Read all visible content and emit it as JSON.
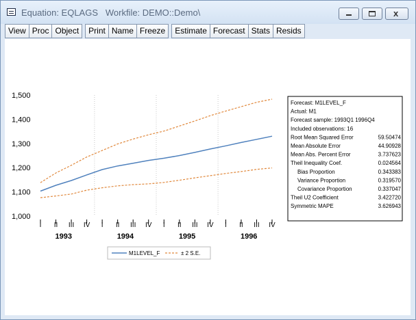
{
  "window": {
    "title": "Equation: EQLAGS   Workfile: DEMO::Demo\\",
    "minimize_glyph": "–",
    "close_glyph": "x"
  },
  "toolbar": {
    "groups": [
      [
        "View",
        "Proc",
        "Object"
      ],
      [
        "Print",
        "Name",
        "Freeze"
      ],
      [
        "Estimate",
        "Forecast",
        "Stats",
        "Resids"
      ]
    ]
  },
  "chart_data": {
    "type": "line",
    "ylim": [
      1000,
      1500
    ],
    "yticks": [
      1000,
      1100,
      1200,
      1300,
      1400,
      1500
    ],
    "ytick_labels": [
      "1,000",
      "1,100",
      "1,200",
      "1,300",
      "1,400",
      "1,500"
    ],
    "quarters": [
      "I",
      "II",
      "III",
      "IV",
      "I",
      "II",
      "III",
      "IV",
      "I",
      "II",
      "III",
      "IV",
      "I",
      "II",
      "III",
      "IV"
    ],
    "years": [
      "1993",
      "1994",
      "1995",
      "1996"
    ],
    "grid": "vertical dotted at year boundaries",
    "series": [
      {
        "name": "M1LEVEL_F",
        "color": "#4f81bd",
        "style": "solid",
        "values": [
          1103,
          1127,
          1147,
          1170,
          1192,
          1207,
          1218,
          1230,
          1239,
          1250,
          1263,
          1277,
          1290,
          1304,
          1317,
          1330
        ]
      },
      {
        "name": "± 2 S.E.",
        "color": "#e0873a",
        "style": "dashed",
        "upper": [
          1138,
          1178,
          1210,
          1244,
          1271,
          1298,
          1318,
          1336,
          1351,
          1372,
          1393,
          1415,
          1434,
          1452,
          1470,
          1483
        ],
        "lower": [
          1076,
          1083,
          1091,
          1107,
          1117,
          1125,
          1130,
          1133,
          1139,
          1148,
          1158,
          1167,
          1176,
          1184,
          1193,
          1199
        ]
      }
    ],
    "legend_position": "bottom-center"
  },
  "stats_box": {
    "rows": [
      {
        "label": "Forecast: M1LEVEL_F",
        "value": "",
        "indent": 0
      },
      {
        "label": "Actual: M1",
        "value": "",
        "indent": 0
      },
      {
        "label": "Forecast sample: 1993Q1 1996Q4",
        "value": "",
        "indent": 0
      },
      {
        "label": "Included observations: 16",
        "value": "",
        "indent": 0
      },
      {
        "label": "Root Mean Squared Error",
        "value": "59.50474",
        "indent": 0
      },
      {
        "label": "Mean Absolute Error",
        "value": "44.90928",
        "indent": 0
      },
      {
        "label": "Mean Abs. Percent Error",
        "value": "3.737623",
        "indent": 0
      },
      {
        "label": "Theil Inequality Coef.",
        "value": "0.024564",
        "indent": 0
      },
      {
        "label": "Bias Proportion",
        "value": "0.343383",
        "indent": 1
      },
      {
        "label": "Variance Proportion",
        "value": "0.319570",
        "indent": 1
      },
      {
        "label": "Covariance Proportion",
        "value": "0.337047",
        "indent": 1
      },
      {
        "label": "Theil U2 Coefficient",
        "value": "3.422720",
        "indent": 0
      },
      {
        "label": "Symmetric MAPE",
        "value": "3.626943",
        "indent": 0
      }
    ]
  }
}
